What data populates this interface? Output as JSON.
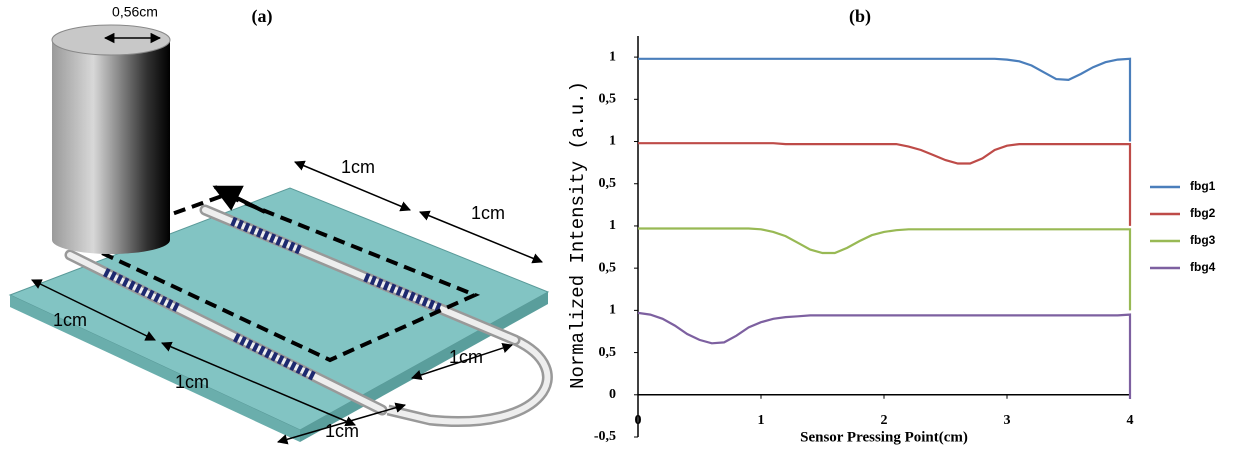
{
  "panel_a": {
    "label": "(a)",
    "diameter": "0,56cm",
    "dimensions": [
      "1cm",
      "1cm",
      "1cm",
      "1cm",
      "1cm",
      "1cm"
    ]
  },
  "chart_data": {
    "type": "line",
    "title": "(b)",
    "ylabel": "Normalized Intensity (a.u.)",
    "xlabel": "Sensor Pressing Point(cm)",
    "x": [
      0,
      0.1,
      0.2,
      0.3,
      0.4,
      0.5,
      0.6,
      0.7,
      0.8,
      0.9,
      1,
      1.1,
      1.2,
      1.3,
      1.4,
      1.5,
      1.6,
      1.7,
      1.8,
      1.9,
      2,
      2.1,
      2.2,
      2.3,
      2.4,
      2.5,
      2.6,
      2.7,
      2.8,
      2.9,
      3,
      3.1,
      3.2,
      3.3,
      3.4,
      3.5,
      3.6,
      3.7,
      3.8,
      3.9,
      4,
      4
    ],
    "series": [
      {
        "name": "fbg1",
        "color": "#4a7ebb",
        "values": [
          3.98,
          3.98,
          3.98,
          3.98,
          3.98,
          3.98,
          3.98,
          3.98,
          3.98,
          3.98,
          3.98,
          3.98,
          3.98,
          3.98,
          3.98,
          3.98,
          3.98,
          3.98,
          3.98,
          3.98,
          3.98,
          3.98,
          3.98,
          3.98,
          3.98,
          3.98,
          3.98,
          3.98,
          3.98,
          3.98,
          3.97,
          3.95,
          3.9,
          3.82,
          3.74,
          3.73,
          3.8,
          3.88,
          3.94,
          3.97,
          3.98,
          3.0
        ]
      },
      {
        "name": "fbg2",
        "color": "#be4b48",
        "values": [
          2.98,
          2.98,
          2.98,
          2.98,
          2.98,
          2.98,
          2.98,
          2.98,
          2.98,
          2.98,
          2.98,
          2.98,
          2.97,
          2.97,
          2.97,
          2.97,
          2.97,
          2.97,
          2.97,
          2.97,
          2.97,
          2.97,
          2.94,
          2.9,
          2.84,
          2.78,
          2.74,
          2.74,
          2.8,
          2.9,
          2.95,
          2.97,
          2.97,
          2.97,
          2.97,
          2.97,
          2.97,
          2.97,
          2.97,
          2.97,
          2.97,
          2.0
        ]
      },
      {
        "name": "fbg3",
        "color": "#98b954",
        "values": [
          1.97,
          1.97,
          1.97,
          1.97,
          1.97,
          1.97,
          1.97,
          1.97,
          1.97,
          1.97,
          1.96,
          1.93,
          1.88,
          1.8,
          1.72,
          1.68,
          1.68,
          1.74,
          1.82,
          1.89,
          1.93,
          1.95,
          1.96,
          1.96,
          1.96,
          1.96,
          1.96,
          1.96,
          1.96,
          1.96,
          1.96,
          1.96,
          1.96,
          1.96,
          1.96,
          1.96,
          1.96,
          1.96,
          1.96,
          1.96,
          1.96,
          1.0
        ]
      },
      {
        "name": "fbg4",
        "color": "#7d60a0",
        "values": [
          0.97,
          0.95,
          0.9,
          0.82,
          0.72,
          0.65,
          0.61,
          0.62,
          0.7,
          0.8,
          0.86,
          0.9,
          0.92,
          0.93,
          0.94,
          0.94,
          0.94,
          0.94,
          0.94,
          0.94,
          0.94,
          0.94,
          0.94,
          0.94,
          0.94,
          0.94,
          0.94,
          0.94,
          0.94,
          0.94,
          0.94,
          0.94,
          0.94,
          0.94,
          0.94,
          0.94,
          0.94,
          0.94,
          0.94,
          0.94,
          0.95,
          -0.05
        ]
      }
    ],
    "xlim": [
      0,
      4
    ],
    "xticks": [
      0,
      1,
      2,
      3,
      4
    ],
    "ylim": [
      -0.5,
      4.25
    ],
    "yticks": [
      {
        "value": -0.5,
        "label": "-0,5"
      },
      0,
      {
        "value": 0.5,
        "label": "0,5"
      },
      1,
      {
        "value": 1.5,
        "label": "0,5"
      },
      {
        "value": 2,
        "label": "1"
      },
      {
        "value": 2.5,
        "label": "0,5"
      },
      {
        "value": 3,
        "label": "1"
      },
      {
        "value": 3.5,
        "label": "0,5"
      },
      {
        "value": 4,
        "label": "1"
      }
    ],
    "legend": "right",
    "grid": false
  }
}
